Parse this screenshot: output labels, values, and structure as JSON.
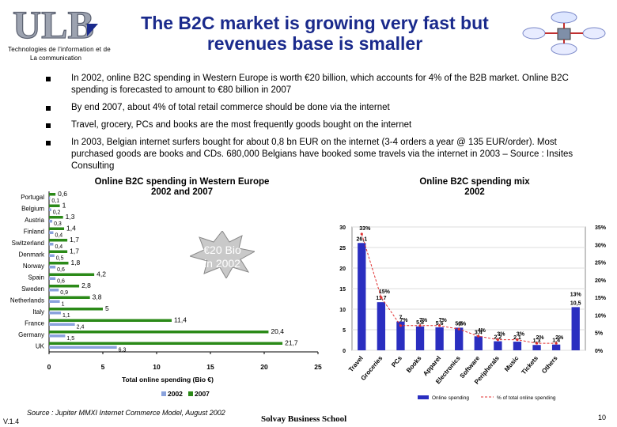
{
  "header": {
    "logo_text": "ULB",
    "logo_sub_line1": "Technologies de l'information et de",
    "logo_sub_line2": "La communication",
    "title_line1": "The B2C market is growing very fast but",
    "title_line2": "revenues base is smaller"
  },
  "bullets": [
    "In 2002, online B2C spending in Western Europe is worth €20 billion, which accounts for 4% of the B2B market. Online B2C spending is forecasted to amount to €80 billion in 2007",
    "By end 2007, about 4% of total retail commerce should be done via the internet",
    "Travel, grocery, PCs and books are the most frequently goods bought on the internet",
    "In 2003, Belgian internet surfers bought for about 0,8 bn EUR on the internet (3-4 orders a year @ 135 EUR/order). Most purchased goods are books and CDs. 680,000 Belgians have booked some travels via the internet in 2003 – Source : Insites Consulting"
  ],
  "callout": {
    "line1": "€20 Bio",
    "line2": "in 2002"
  },
  "chart_data": [
    {
      "type": "bar",
      "orientation": "horizontal",
      "title": "Online B2C spending in Western Europe 2002 and 2007",
      "title_line1": "Online B2C spending in Western Europe",
      "title_line2": "2002 and 2007",
      "categories": [
        "Portugal",
        "Belgium",
        "Austria",
        "Finland",
        "Switzerland",
        "Denmark",
        "Norway",
        "Spain",
        "Sweden",
        "Netherlands",
        "Italy",
        "France",
        "Germany",
        "UK"
      ],
      "series": [
        {
          "name": "2002",
          "color": "#8aa2dc",
          "values": [
            0.1,
            0.2,
            0.3,
            0.4,
            0.4,
            0.5,
            0.6,
            0.6,
            0.9,
            1,
            1.1,
            2.4,
            1.5,
            6.3
          ],
          "labels": [
            "0,1",
            "0,2",
            "0,3",
            "0,4",
            "0,4",
            "0,5",
            "0,6",
            "0,6",
            "0,9",
            "1",
            "1,1",
            "2,4",
            "1,5",
            "6,3"
          ]
        },
        {
          "name": "2007",
          "color": "#2b8a18",
          "values": [
            0.6,
            1,
            1.3,
            1.4,
            1.7,
            1.7,
            1.8,
            4.2,
            2.8,
            3.8,
            5,
            11.4,
            20.4,
            21.7
          ],
          "labels": [
            "0,6",
            "1",
            "1,3",
            "1,4",
            "1,7",
            "1,7",
            "1,8",
            "4,2",
            "2,8",
            "3,8",
            "5",
            "11,4",
            "20,4",
            "21,7"
          ]
        }
      ],
      "xlim": [
        0,
        25
      ],
      "xticks": [
        "0",
        "5",
        "10",
        "15",
        "20",
        "25"
      ],
      "xlabel": "Total online spending (Bio €)",
      "legend": [
        "2002",
        "2007"
      ]
    },
    {
      "type": "bar",
      "title": "Online B2C spending mix 2002",
      "title_line1": "Online B2C spending mix",
      "title_line2": "2002",
      "categories": [
        "Travel",
        "Groceries",
        "PCs",
        "Books",
        "Apparel",
        "Electronics",
        "Software",
        "Peripherals",
        "Music",
        "Tickets",
        "Others"
      ],
      "series": [
        {
          "name": "Online spending",
          "color": "#2a2ec0",
          "values": [
            26.1,
            11.7,
            7,
            5.8,
            5.6,
            5.5,
            3.4,
            2.2,
            2.1,
            1.3,
            1.4
          ],
          "labels": [
            "26,1",
            "11,7",
            "7",
            "5,8",
            "5,6",
            "5,5",
            "3,4",
            "2,2",
            "2,1",
            "1,3",
            "1,4"
          ]
        },
        {
          "name": "% of total online spending",
          "color": "#e03030",
          "type": "line",
          "values": [
            33,
            15,
            7,
            7,
            7,
            6,
            4,
            3,
            3,
            2,
            2
          ],
          "labels": [
            "33%",
            "15%",
            "7%",
            "7%",
            "7%",
            "6%",
            "4%",
            "3%",
            "3%",
            "2%",
            "2%"
          ]
        }
      ],
      "extra_bar": {
        "value": 10.5,
        "label": "10,5",
        "pct_label": "13%"
      },
      "ylim": [
        0,
        30
      ],
      "yticks": [
        "0",
        "5",
        "10",
        "15",
        "20",
        "25",
        "30"
      ],
      "y2lim": [
        0,
        35
      ],
      "y2ticks": [
        "0%",
        "5%",
        "10%",
        "15%",
        "20%",
        "25%",
        "30%",
        "35%"
      ],
      "legend": [
        "Online spending",
        "% of total online spending"
      ]
    }
  ],
  "footer": {
    "source": "Source : Jupiter MMXI Internet Commerce Model, August 2002",
    "version": "V.1.4",
    "school": "Solvay Business School",
    "page": "10"
  }
}
